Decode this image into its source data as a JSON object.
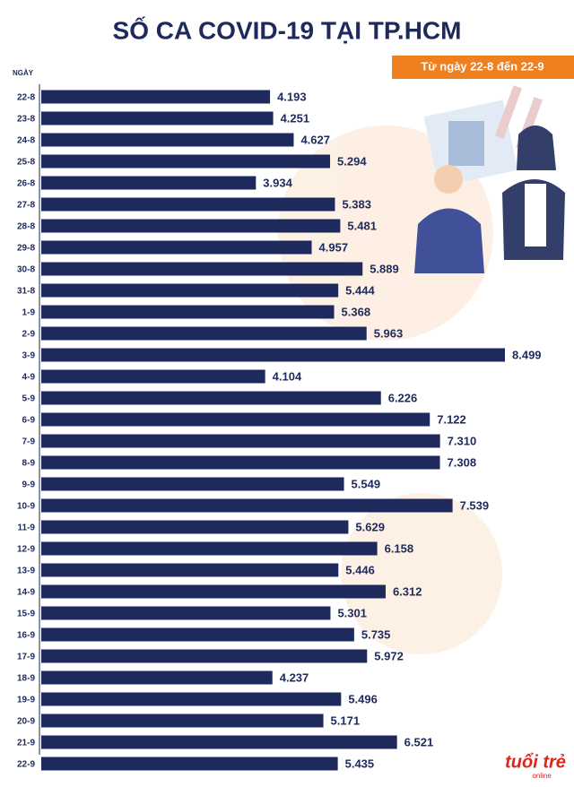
{
  "chart_data": {
    "type": "bar",
    "orientation": "horizontal",
    "title": "SỐ CA COVID-19 TẠI TP.HCM",
    "subtitle": "Từ ngày 22-8 đến 22-9",
    "y_label": "NGÀY",
    "color": "#1f2a5c",
    "categories": [
      "22-8",
      "23-8",
      "24-8",
      "25-8",
      "26-8",
      "27-8",
      "28-8",
      "29-8",
      "30-8",
      "31-8",
      "1-9",
      "2-9",
      "3-9",
      "4-9",
      "5-9",
      "6-9",
      "7-9",
      "8-9",
      "9-9",
      "10-9",
      "11-9",
      "12-9",
      "13-9",
      "14-9",
      "15-9",
      "16-9",
      "17-9",
      "18-9",
      "19-9",
      "20-9",
      "21-9",
      "22-9"
    ],
    "values": [
      4193,
      4251,
      4627,
      5294,
      3934,
      5383,
      5481,
      4957,
      5889,
      5444,
      5368,
      5963,
      8499,
      4104,
      6226,
      7122,
      7310,
      7308,
      5549,
      7539,
      5629,
      6158,
      5446,
      6312,
      5301,
      5735,
      5972,
      4237,
      5496,
      5171,
      6521,
      5435
    ],
    "value_labels": [
      "4.193",
      "4.251",
      "4.627",
      "5.294",
      "3.934",
      "5.383",
      "5.481",
      "4.957",
      "5.889",
      "5.444",
      "5.368",
      "5.963",
      "8.499",
      "4.104",
      "6.226",
      "7.122",
      "7.310",
      "7.308",
      "5.549",
      "7.539",
      "5.629",
      "6.158",
      "5.446",
      "6.312",
      "5.301",
      "5.735",
      "5.972",
      "4.237",
      "5.496",
      "5.171",
      "6.521",
      "5.435"
    ],
    "logo": "tuổi trẻ",
    "logo_sub": "online"
  }
}
